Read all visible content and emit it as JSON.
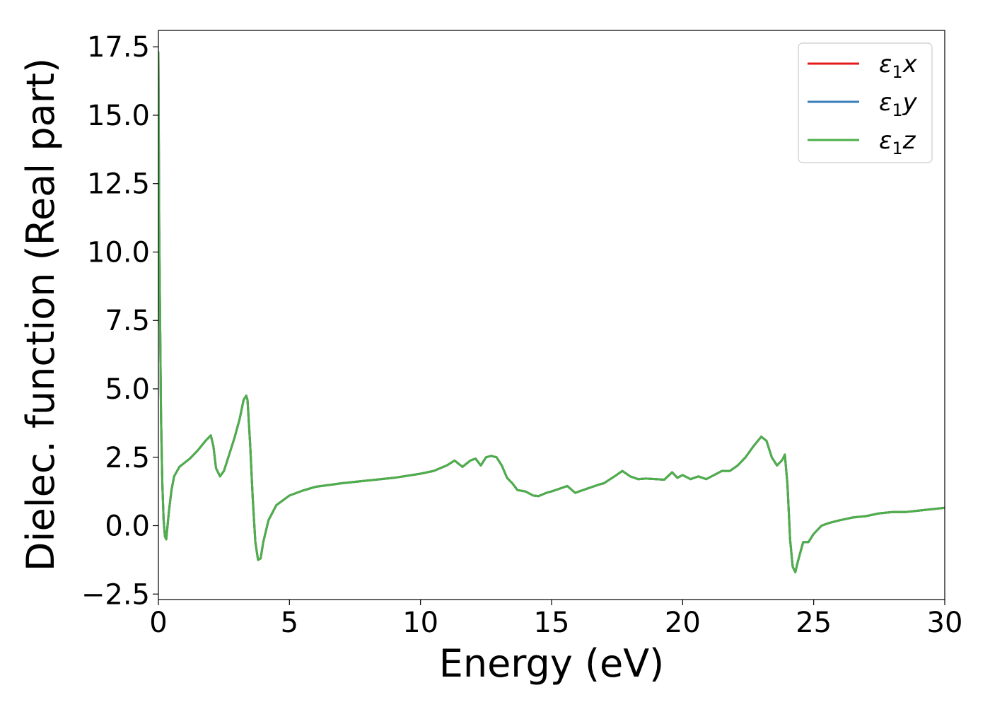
{
  "chart_data": {
    "type": "line",
    "title": "",
    "xlabel": "Energy (eV)",
    "ylabel": "Dielec. function (Real part)",
    "xlim": [
      0,
      30
    ],
    "ylim": [
      -2.7,
      18.1
    ],
    "xticks": [
      0,
      5,
      10,
      15,
      20,
      25,
      30
    ],
    "xtick_labels": [
      "0",
      "5",
      "10",
      "15",
      "20",
      "25",
      "30"
    ],
    "yticks": [
      -2.5,
      0.0,
      2.5,
      5.0,
      7.5,
      10.0,
      12.5,
      15.0,
      17.5
    ],
    "ytick_labels": [
      "−2.5",
      "0.0",
      "2.5",
      "5.0",
      "7.5",
      "10.0",
      "12.5",
      "15.0",
      "17.5"
    ],
    "grid": false,
    "legend_position": "top-right",
    "series": [
      {
        "name": "ε₁x",
        "legend_base": "ε",
        "legend_sub": "1",
        "legend_suffix": "x",
        "color": "#e41a1c"
      },
      {
        "name": "ε₁y",
        "legend_base": "ε",
        "legend_sub": "1",
        "legend_suffix": "y",
        "color": "#377eb8"
      },
      {
        "name": "ε₁z",
        "legend_base": "ε",
        "legend_sub": "1",
        "legend_suffix": "z",
        "color": "#4daf4a"
      }
    ],
    "x": [
      0.0,
      0.03,
      0.1,
      0.15,
      0.2,
      0.25,
      0.3,
      0.4,
      0.5,
      0.6,
      0.8,
      1.0,
      1.2,
      1.5,
      1.8,
      2.0,
      2.1,
      2.2,
      2.35,
      2.5,
      2.7,
      2.9,
      3.1,
      3.25,
      3.35,
      3.4,
      3.5,
      3.6,
      3.7,
      3.8,
      3.9,
      4.0,
      4.2,
      4.5,
      5.0,
      5.5,
      6.0,
      7.0,
      8.0,
      9.0,
      10.0,
      10.5,
      11.0,
      11.3,
      11.6,
      11.9,
      12.1,
      12.3,
      12.5,
      12.7,
      12.9,
      13.1,
      13.3,
      13.5,
      13.7,
      14.0,
      14.3,
      14.5,
      14.8,
      15.0,
      15.3,
      15.6,
      15.9,
      16.2,
      16.5,
      16.8,
      17.0,
      17.4,
      17.7,
      18.0,
      18.3,
      18.6,
      19.0,
      19.3,
      19.6,
      19.8,
      20.0,
      20.3,
      20.6,
      20.9,
      21.2,
      21.5,
      21.8,
      22.1,
      22.4,
      22.7,
      23.0,
      23.2,
      23.4,
      23.6,
      23.8,
      23.9,
      24.0,
      24.1,
      24.2,
      24.3,
      24.4,
      24.6,
      24.8,
      25.0,
      25.3,
      25.6,
      26.0,
      26.5,
      27.0,
      27.5,
      28.0,
      28.5,
      29.0,
      29.5,
      30.0
    ],
    "values": [
      17.3,
      11.0,
      4.0,
      1.5,
      0.2,
      -0.4,
      -0.5,
      0.5,
      1.3,
      1.8,
      2.15,
      2.3,
      2.45,
      2.75,
      3.1,
      3.3,
      2.9,
      2.1,
      1.8,
      2.0,
      2.6,
      3.2,
      3.9,
      4.6,
      4.75,
      4.6,
      3.0,
      1.0,
      -0.6,
      -1.25,
      -1.2,
      -0.6,
      0.2,
      0.75,
      1.1,
      1.28,
      1.42,
      1.55,
      1.65,
      1.75,
      1.9,
      2.0,
      2.2,
      2.38,
      2.15,
      2.38,
      2.45,
      2.2,
      2.5,
      2.55,
      2.5,
      2.2,
      1.75,
      1.55,
      1.3,
      1.25,
      1.1,
      1.08,
      1.2,
      1.25,
      1.35,
      1.45,
      1.2,
      1.3,
      1.4,
      1.5,
      1.55,
      1.8,
      2.0,
      1.8,
      1.7,
      1.72,
      1.7,
      1.68,
      1.95,
      1.75,
      1.85,
      1.7,
      1.8,
      1.7,
      1.85,
      2.0,
      2.0,
      2.2,
      2.5,
      2.9,
      3.25,
      3.1,
      2.5,
      2.2,
      2.4,
      2.6,
      1.5,
      -0.5,
      -1.5,
      -1.7,
      -1.3,
      -0.6,
      -0.6,
      -0.3,
      0.0,
      0.1,
      0.2,
      0.3,
      0.35,
      0.45,
      0.5,
      0.5,
      0.55,
      0.6,
      0.65
    ]
  }
}
